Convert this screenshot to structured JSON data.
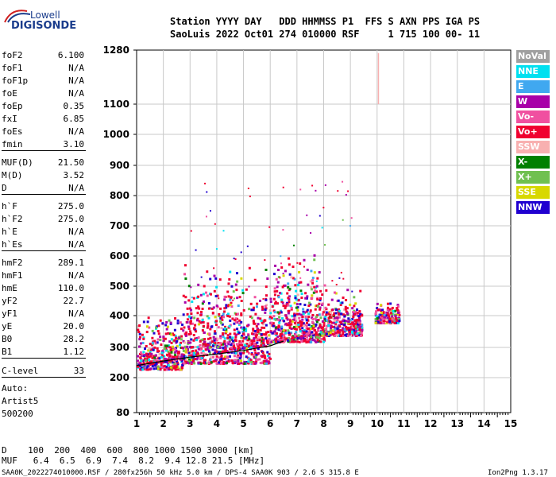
{
  "logo": {
    "line1": "Lowell",
    "line2": "DIGISONDE"
  },
  "header": {
    "line1": "Station YYYY DAY   DDD HHMMSS P1  FFS S AXN PPS IGA PS",
    "line2": "SaoLuis 2022 Oct01 274 010000 RSF     1 715 100 00- 11"
  },
  "params": [
    {
      "name": "foF2",
      "value": "6.100"
    },
    {
      "name": "foF1",
      "value": "N/A"
    },
    {
      "name": "foF1p",
      "value": "N/A"
    },
    {
      "name": "foE",
      "value": "N/A"
    },
    {
      "name": "foEp",
      "value": "0.35"
    },
    {
      "name": "fxI",
      "value": "6.85"
    },
    {
      "name": "foEs",
      "value": "N/A"
    },
    {
      "name": "fmin",
      "value": "3.10"
    },
    {
      "name": "MUF(D)",
      "value": "21.50"
    },
    {
      "name": "M(D)",
      "value": "3.52"
    },
    {
      "name": "D",
      "value": "N/A"
    },
    {
      "name": "h`F",
      "value": "275.0"
    },
    {
      "name": "h`F2",
      "value": "275.0"
    },
    {
      "name": "h`E",
      "value": "N/A"
    },
    {
      "name": "h`Es",
      "value": "N/A"
    },
    {
      "name": "hmF2",
      "value": "289.1"
    },
    {
      "name": "hmF1",
      "value": "N/A"
    },
    {
      "name": "hmE",
      "value": "110.0"
    },
    {
      "name": "yF2",
      "value": "22.7"
    },
    {
      "name": "yF1",
      "value": "N/A"
    },
    {
      "name": "yE",
      "value": "20.0"
    },
    {
      "name": "B0",
      "value": "28.2"
    },
    {
      "name": "B1",
      "value": "1.12"
    },
    {
      "name": "C-level",
      "value": "33"
    }
  ],
  "autoscale": {
    "line1": "Auto:",
    "line2": "Artist5",
    "line3": "500200"
  },
  "legend": [
    {
      "label": "NoVal",
      "color": "#a0a0a0"
    },
    {
      "label": "NNE",
      "color": "#00e0f0"
    },
    {
      "label": "E",
      "color": "#40a8f0"
    },
    {
      "label": "W",
      "color": "#a800a8"
    },
    {
      "label": "Vo-",
      "color": "#f050a0"
    },
    {
      "label": "Vo+",
      "color": "#f00030"
    },
    {
      "label": "SSW",
      "color": "#f8b0b0"
    },
    {
      "label": "X-",
      "color": "#008000"
    },
    {
      "label": "X+",
      "color": "#70c050"
    },
    {
      "label": "SSE",
      "color": "#d8d800"
    },
    {
      "label": "NNW",
      "color": "#2000d0"
    }
  ],
  "bottom": {
    "d_row": "D    100  200  400  600  800 1000 1500 3000 [km]",
    "muf_row": "MUF   6.4  6.5  6.9  7.4  8.2  9.4 12.8 21.5 [MHz]"
  },
  "footer": {
    "left": "SAA0K_2022274010000.RSF / 280fx256h 50 kHz 5.0 km / DPS-4 SAA0K 903 / 2.6 S 315.8 E",
    "right": "Ion2Png 1.3.17"
  },
  "chart_data": {
    "type": "scatter",
    "xlabel": "",
    "ylabel": "",
    "xlim": [
      1,
      15
    ],
    "ylim": [
      80,
      1280
    ],
    "x_ticks": [
      "1",
      "2",
      "3",
      "4",
      "5",
      "6",
      "7",
      "8",
      "9",
      "10",
      "11",
      "12",
      "13",
      "14",
      "15"
    ],
    "y_ticks": [
      "80",
      "200",
      "300",
      "400",
      "500",
      "600",
      "700",
      "800",
      "900",
      "1000",
      "1100",
      "1280"
    ],
    "y_scale": "nonlinear (log-like)",
    "grid": true,
    "legend_position": "right",
    "f_trace": {
      "series": "F-layer echo trace (virtual height vs frequency)",
      "x": [
        1.0,
        2.0,
        3.0,
        4.0,
        5.0,
        6.0,
        6.5
      ],
      "y": [
        240,
        255,
        268,
        278,
        290,
        305,
        320
      ]
    },
    "echo_regions": [
      {
        "fmin": 1.0,
        "fmax": 2.7,
        "hmin": 230,
        "hmax": 420
      },
      {
        "fmin": 2.7,
        "fmax": 6.0,
        "hmin": 250,
        "hmax": 580
      },
      {
        "fmin": 6.0,
        "fmax": 8.0,
        "hmin": 320,
        "hmax": 650
      },
      {
        "fmin": 8.0,
        "fmax": 9.4,
        "hmin": 340,
        "hmax": 500
      },
      {
        "fmin": 9.9,
        "fmax": 10.8,
        "hmin": 380,
        "hmax": 450
      }
    ]
  }
}
